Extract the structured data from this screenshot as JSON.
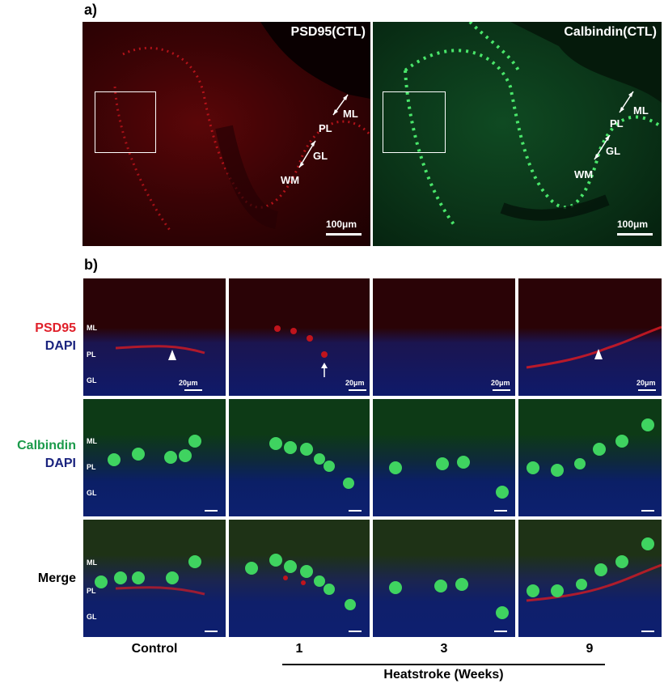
{
  "panel_a": {
    "label": "a)",
    "left": {
      "title": "PSD95(CTL)",
      "scale": "100μm",
      "layers": [
        "ML",
        "PL",
        "GL",
        "WM"
      ]
    },
    "right": {
      "title": "Calbindin(CTL)",
      "scale": "100μm",
      "layers": [
        "ML",
        "PL",
        "GL",
        "WM"
      ]
    }
  },
  "panel_b": {
    "label": "b)",
    "rows": [
      {
        "marker": "PSD95",
        "counterstain": "DAPI",
        "marker_color": "#e0202a",
        "counter_color": "#1a237e"
      },
      {
        "marker": "Calbindin",
        "counterstain": "DAPI",
        "marker_color": "#1a9a4a",
        "counter_color": "#1a237e"
      },
      {
        "marker": "Merge"
      }
    ],
    "layers": [
      "ML",
      "PL",
      "GL"
    ],
    "scale": "20μm",
    "columns": [
      "Control",
      "1",
      "3",
      "9"
    ],
    "group_label": "Heatstroke (Weeks)"
  }
}
